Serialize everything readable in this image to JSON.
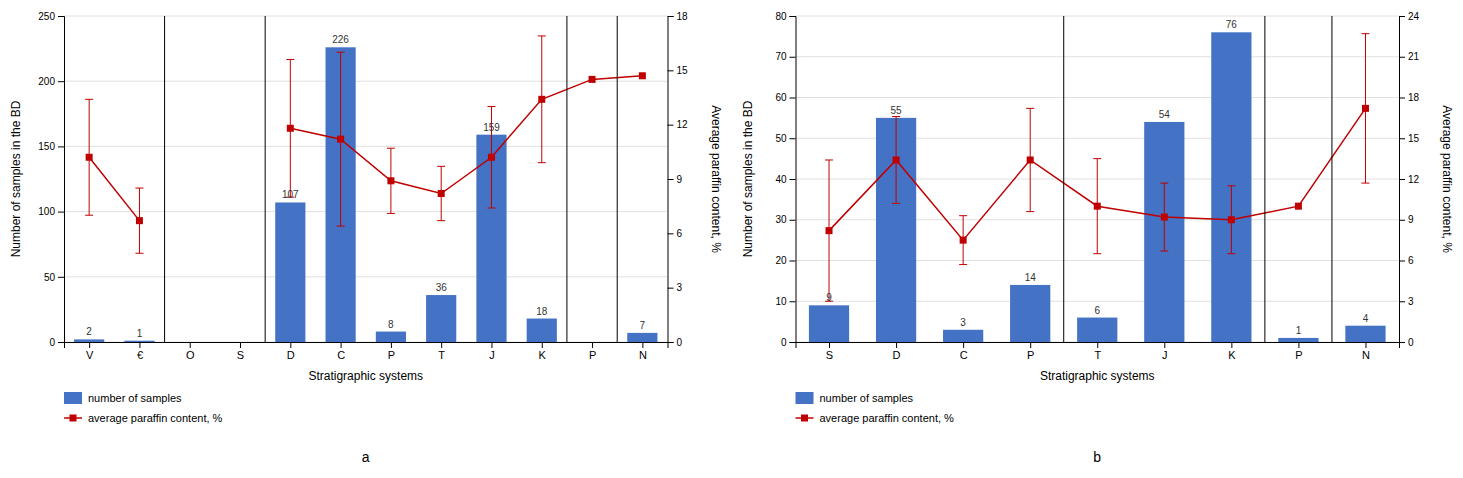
{
  "chart_data": [
    {
      "type": "bar",
      "subtitle": "a",
      "xlabel": "Stratigraphic systems",
      "ylabel": "Number of samples in the BD",
      "y2label": "Average paraffin content, %",
      "categories": [
        "V",
        "€",
        "O",
        "S",
        "D",
        "C",
        "P",
        "T",
        "J",
        "K",
        "P",
        "N"
      ],
      "series": [
        {
          "name": "number of samples",
          "type": "bar",
          "color": "#4472C4",
          "values": [
            2,
            1,
            0,
            0,
            107,
            226,
            8,
            36,
            159,
            18,
            0,
            7
          ],
          "value_labels": [
            "2",
            "1",
            null,
            null,
            "107",
            "226",
            "8",
            "36",
            "159",
            "18",
            null,
            "7"
          ]
        },
        {
          "name": "average paraffin content, %",
          "type": "line",
          "axis": "y2",
          "color": "#C00000",
          "marker": "square",
          "values": [
            10.2,
            6.7,
            null,
            null,
            11.8,
            11.2,
            8.9,
            8.2,
            10.2,
            13.4,
            14.5,
            14.7
          ],
          "yerr_low": [
            3.2,
            1.8,
            null,
            null,
            3.8,
            4.8,
            1.8,
            1.5,
            2.8,
            3.5,
            null,
            null
          ],
          "yerr_high": [
            3.2,
            1.8,
            null,
            null,
            3.8,
            4.8,
            1.8,
            1.5,
            2.8,
            3.5,
            null,
            null
          ]
        }
      ],
      "ylim": [
        0,
        250
      ],
      "yticks": [
        0,
        50,
        100,
        150,
        200,
        250
      ],
      "y2lim": [
        0,
        18
      ],
      "y2ticks": [
        0,
        3,
        6,
        9,
        12,
        15,
        18
      ],
      "separators": [
        1.5,
        3.5,
        9.5,
        10.5
      ],
      "grid": true,
      "legend": "below",
      "data_labels": true
    },
    {
      "type": "bar",
      "subtitle": "b",
      "xlabel": "Stratigraphic systems",
      "ylabel": "Number of samples in the BD",
      "y2label": "Average paraffin content, %",
      "categories": [
        "S",
        "D",
        "C",
        "P",
        "T",
        "J",
        "K",
        "P",
        "N"
      ],
      "series": [
        {
          "name": "number of samples",
          "type": "bar",
          "color": "#4472C4",
          "values": [
            9,
            55,
            3,
            14,
            6,
            54,
            76,
            1,
            4
          ],
          "value_labels": [
            "9",
            "55",
            "3",
            "14",
            "6",
            "54",
            "76",
            "1",
            "4"
          ]
        },
        {
          "name": "average paraffin content, %",
          "type": "line",
          "axis": "y2",
          "color": "#C00000",
          "marker": "square",
          "values": [
            8.2,
            13.4,
            7.5,
            13.4,
            10.0,
            9.2,
            9.0,
            10.0,
            17.2
          ],
          "yerr_low": [
            5.2,
            3.2,
            1.8,
            3.8,
            3.5,
            2.5,
            2.5,
            null,
            5.5
          ],
          "yerr_high": [
            5.2,
            3.2,
            1.8,
            3.8,
            3.5,
            2.5,
            2.5,
            null,
            5.5
          ]
        }
      ],
      "ylim": [
        0,
        80
      ],
      "yticks": [
        0,
        10,
        20,
        30,
        40,
        50,
        60,
        70,
        80
      ],
      "y2lim": [
        0,
        24
      ],
      "y2ticks": [
        0,
        3,
        6,
        9,
        12,
        15,
        18,
        21,
        24
      ],
      "separators": [
        3.5,
        6.5,
        7.5
      ],
      "grid": true,
      "legend": "below",
      "data_labels": true
    }
  ]
}
